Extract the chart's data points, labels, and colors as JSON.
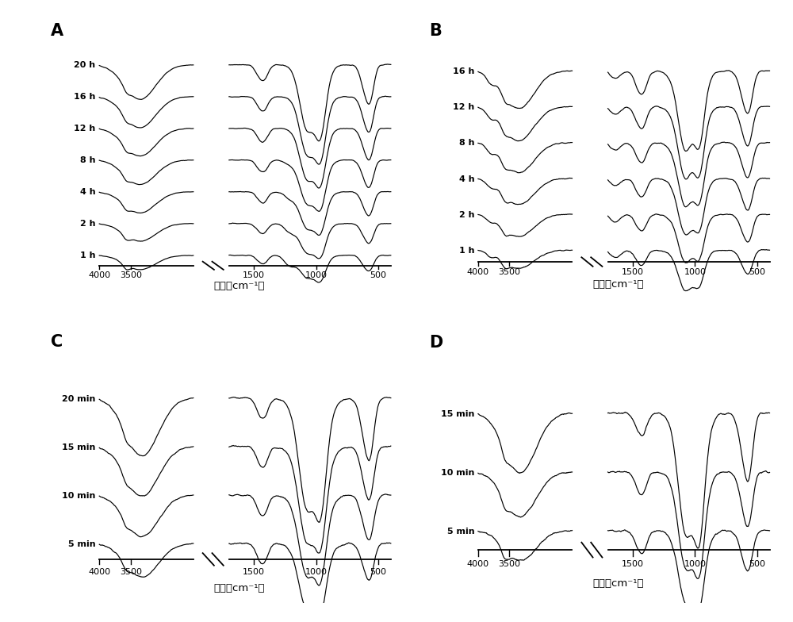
{
  "panels": [
    "A",
    "B",
    "C",
    "D"
  ],
  "panel_A_labels": [
    "1 h",
    "2 h",
    "4 h",
    "8 h",
    "12 h",
    "16 h",
    "20 h"
  ],
  "panel_B_labels": [
    "1 h",
    "2 h",
    "4 h",
    "8 h",
    "12 h",
    "16 h"
  ],
  "panel_C_labels": [
    "5 min",
    "10 min",
    "15 min",
    "20 min"
  ],
  "panel_D_labels": [
    "5 min",
    "10 min",
    "15 min"
  ],
  "xlabel": "波束（cm⁻¹）",
  "background_color": "#ffffff",
  "line_color": "#000000",
  "line_width": 1.0
}
